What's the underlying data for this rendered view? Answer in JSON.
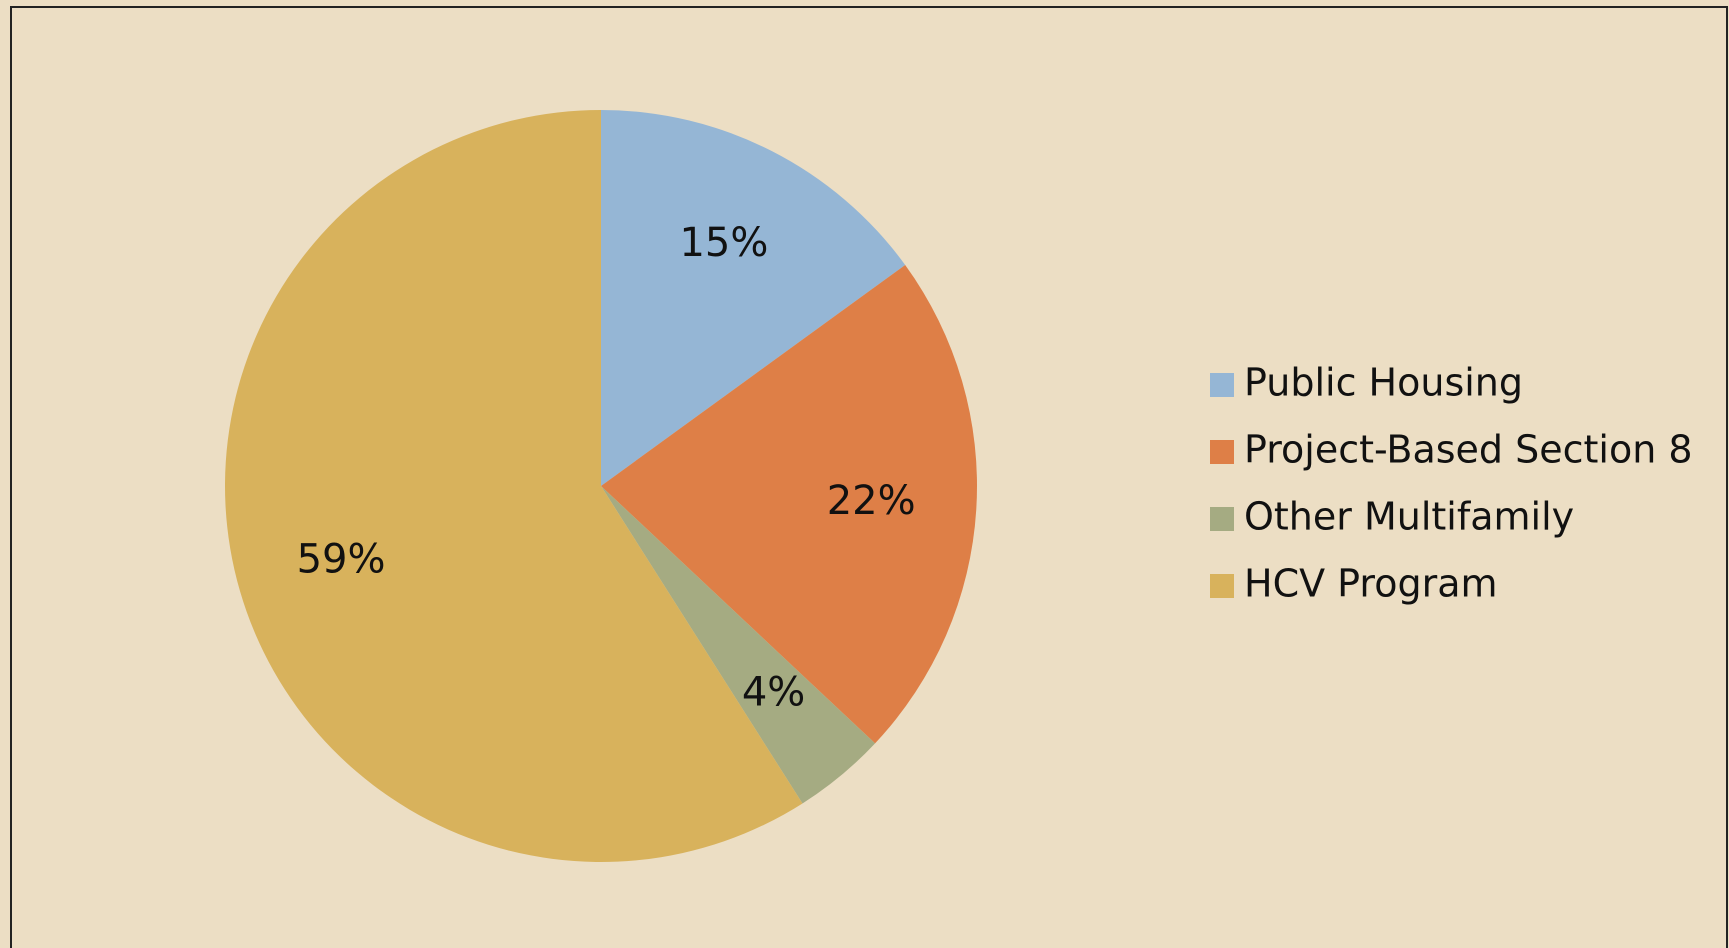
{
  "chart_data": {
    "type": "pie",
    "categories": [
      "Public Housing",
      "Project-Based Section 8",
      "Other Multifamily",
      "HCV Program"
    ],
    "values": [
      15,
      22,
      4,
      59
    ],
    "value_labels": [
      "15%",
      "22%",
      "4%",
      "59%"
    ],
    "colors": [
      "#95b6d5",
      "#de7f47",
      "#a5ab82",
      "#d8b25c"
    ],
    "legend": "right"
  }
}
